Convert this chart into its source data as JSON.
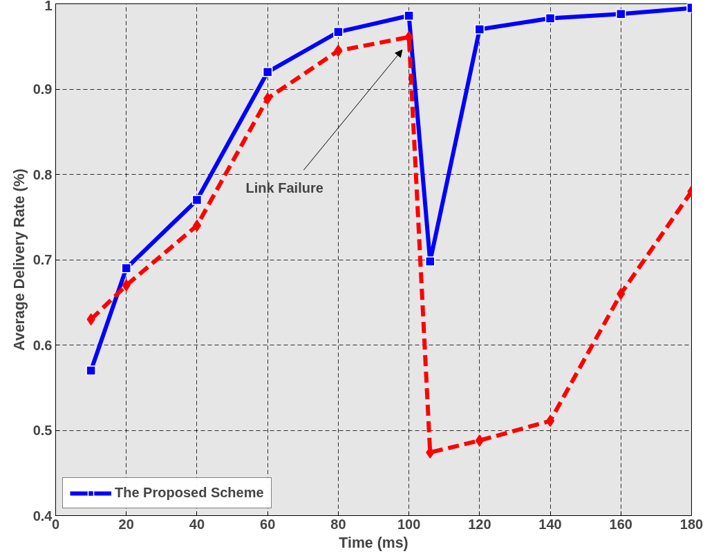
{
  "chart_data": {
    "type": "line",
    "xlabel": "Time (ms)",
    "ylabel": "Average Delivery Rate (%)",
    "xlim": [
      0,
      180
    ],
    "ylim": [
      0.4,
      1
    ],
    "xticks": [
      0,
      20,
      40,
      60,
      80,
      100,
      120,
      140,
      160,
      180
    ],
    "yticks": [
      0.4,
      0.5,
      0.6,
      0.7,
      0.8,
      0.9,
      1
    ],
    "grid": true,
    "legend": "bottom left",
    "x": [
      10,
      20,
      40,
      60,
      80,
      100,
      106,
      120,
      140,
      160,
      180
    ],
    "series": [
      {
        "name": "The Proposed Scheme",
        "color": "#0000ff",
        "marker": "square",
        "line_style": "solid",
        "values": [
          0.57,
          0.69,
          0.77,
          0.92,
          0.967,
          0.986,
          0.698,
          0.97,
          0.983,
          0.988,
          0.995
        ]
      },
      {
        "color": "#ff0000",
        "marker": "diamond",
        "line_style": "dashed",
        "values": [
          0.63,
          0.67,
          0.74,
          0.889,
          0.945,
          0.961,
          0.474,
          0.488,
          0.511,
          0.66,
          0.78
        ]
      }
    ],
    "annotations": [
      "Link Failure"
    ]
  }
}
